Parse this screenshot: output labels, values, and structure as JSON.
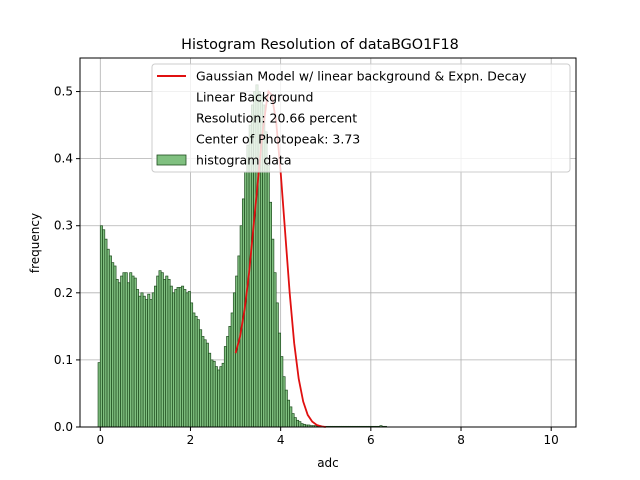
{
  "chart_data": {
    "type": "bar",
    "title": "Histogram Resolution of dataBGO1F18",
    "xlabel": "adc",
    "ylabel": "frequency",
    "xlim": [
      -0.45,
      10.55
    ],
    "ylim": [
      0,
      0.55
    ],
    "x_ticks": [
      0,
      2,
      4,
      6,
      8,
      10
    ],
    "x_tick_labels": [
      "0",
      "2",
      "4",
      "6",
      "8",
      "10"
    ],
    "y_ticks": [
      0.0,
      0.1,
      0.2,
      0.3,
      0.4,
      0.5
    ],
    "y_tick_labels": [
      "0.0",
      "0.1",
      "0.2",
      "0.3",
      "0.4",
      "0.5"
    ],
    "grid": true,
    "legend_position": "top-right",
    "colors": {
      "bar_fill": "#80c080",
      "bar_edge": "#1e4d1e",
      "fit_line": "#e01010",
      "grid": "#b0b0b0"
    },
    "legend": [
      {
        "label": "Gaussian Model w/ linear background & Expn. Decay",
        "marker": "line"
      },
      {
        "label": "Linear Background",
        "marker": "none"
      },
      {
        "label": "Resolution: 20.66 percent",
        "marker": "none"
      },
      {
        "label": "Center of Photopeak: 3.73",
        "marker": "none"
      },
      {
        "label": "histogram data",
        "marker": "patch"
      }
    ],
    "histogram": {
      "name": "histogram data",
      "bin_start": -0.05,
      "bin_width": 0.05,
      "values": [
        0.096,
        0.3,
        0.294,
        0.28,
        0.265,
        0.255,
        0.245,
        0.24,
        0.22,
        0.215,
        0.225,
        0.23,
        0.23,
        0.215,
        0.23,
        0.225,
        0.222,
        0.205,
        0.195,
        0.2,
        0.195,
        0.19,
        0.198,
        0.19,
        0.2,
        0.21,
        0.225,
        0.233,
        0.23,
        0.22,
        0.225,
        0.22,
        0.21,
        0.2,
        0.205,
        0.208,
        0.208,
        0.21,
        0.205,
        0.2,
        0.202,
        0.185,
        0.17,
        0.165,
        0.16,
        0.145,
        0.135,
        0.13,
        0.125,
        0.11,
        0.1,
        0.098,
        0.09,
        0.085,
        0.09,
        0.095,
        0.12,
        0.135,
        0.15,
        0.17,
        0.2,
        0.225,
        0.255,
        0.3,
        0.34,
        0.38,
        0.42,
        0.45,
        0.48,
        0.5,
        0.51,
        0.5,
        0.495,
        0.48,
        0.44,
        0.39,
        0.335,
        0.28,
        0.23,
        0.185,
        0.14,
        0.105,
        0.075,
        0.055,
        0.04,
        0.03,
        0.02,
        0.014,
        0.01,
        0.008,
        0.005,
        0.004,
        0.003,
        0.003,
        0.002,
        0.002,
        0.002,
        0.001,
        0.002,
        0.001,
        0.001,
        0.001,
        0.001,
        0.001,
        0.001,
        0.001,
        0.001,
        0.001,
        0.001,
        0.001,
        0.001,
        0.001,
        0.001,
        0.001,
        0.001,
        0.001,
        0.001,
        0.001,
        0.001,
        0.001,
        0.001,
        0.001,
        0.001,
        0.001,
        0.001,
        0.002,
        0.001,
        0.001
      ]
    },
    "fit": {
      "name": "Gaussian Model w/ linear background & Expn. Decay",
      "x": [
        3.0,
        3.1,
        3.2,
        3.3,
        3.4,
        3.5,
        3.6,
        3.7,
        3.73,
        3.8,
        3.9,
        4.0,
        4.1,
        4.2,
        4.3,
        4.4,
        4.5,
        4.6,
        4.7,
        4.8,
        4.9,
        5.0
      ],
      "y": [
        0.11,
        0.135,
        0.175,
        0.23,
        0.3,
        0.37,
        0.44,
        0.49,
        0.5,
        0.495,
        0.455,
        0.38,
        0.29,
        0.2,
        0.125,
        0.072,
        0.038,
        0.018,
        0.008,
        0.003,
        0.001,
        0.0
      ]
    }
  }
}
